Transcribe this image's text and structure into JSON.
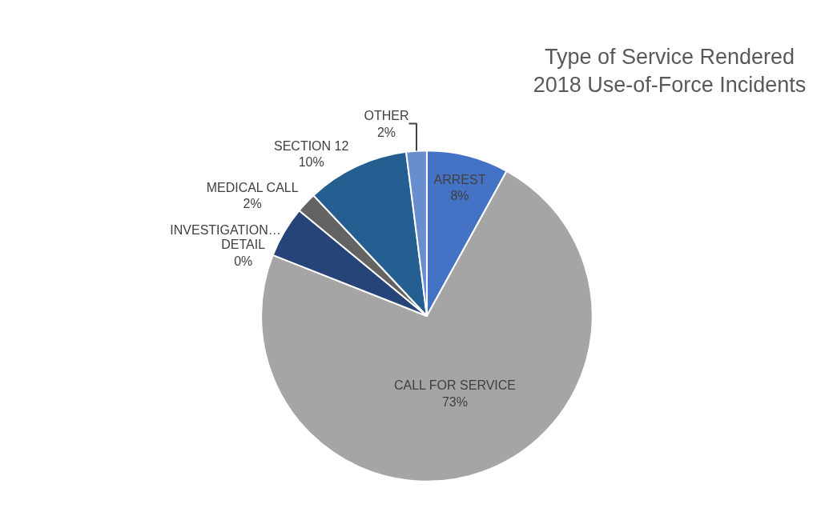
{
  "chart_data": {
    "type": "pie",
    "title": "Type of Service Rendered\n2018 Use-of-Force Incidents",
    "categories": [
      "ARREST",
      "CALL FOR SERVICE",
      "DETAIL",
      "INVESTIGATION…",
      "MEDICAL CALL",
      "SECTION 12",
      "OTHER"
    ],
    "values": [
      8,
      73,
      0,
      5,
      2,
      10,
      2
    ],
    "value_labels": [
      "8%",
      "73%",
      "0%",
      null,
      "2%",
      "10%",
      "2%"
    ],
    "colors": [
      "#4472c4",
      "#a5a5a5",
      "#ffc000",
      "#264478",
      "#636363",
      "#255e91",
      "#698ed0"
    ],
    "legend": false
  }
}
